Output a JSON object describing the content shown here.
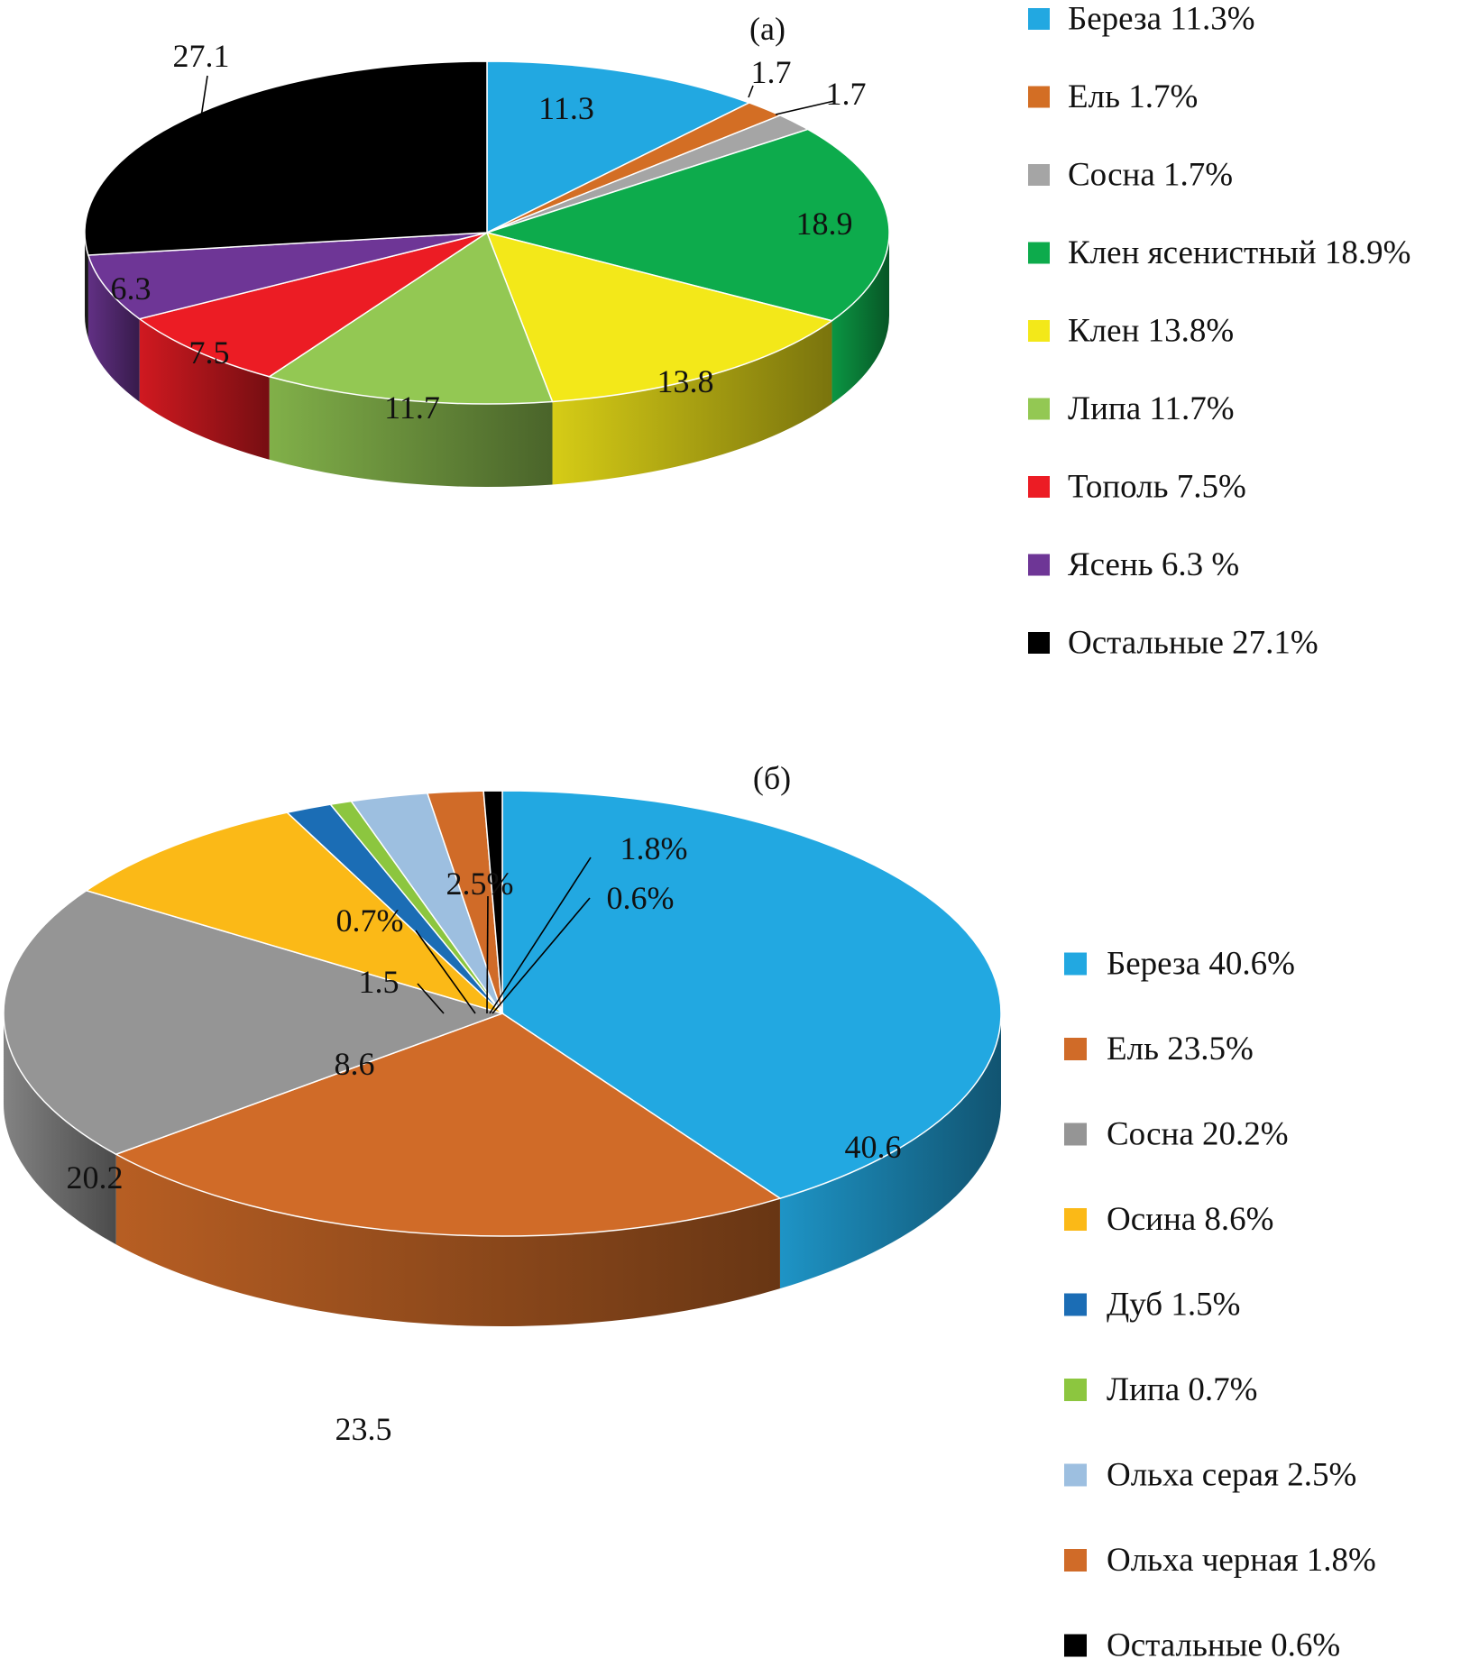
{
  "chart_data": [
    {
      "type": "pie",
      "panel_label": "(а)",
      "legend_position": "right",
      "slices": [
        {
          "name": "Береза",
          "value": 11.3,
          "label": "11.3",
          "legend": "Береза 11.3%",
          "color": "#22a8e1"
        },
        {
          "name": "Ель",
          "value": 1.7,
          "label": "1.7",
          "legend": "Ель 1.7%",
          "color": "#d36e24"
        },
        {
          "name": "Сосна",
          "value": 1.7,
          "label": "1.7",
          "legend": "Сосна 1.7%",
          "color": "#a5a5a5"
        },
        {
          "name": "Клен ясенистный",
          "value": 18.9,
          "label": "18.9",
          "legend": "Клен ясенистный 18.9%",
          "color": "#0dab4c"
        },
        {
          "name": "Клен",
          "value": 13.8,
          "label": "13.8",
          "legend": "Клен 13.8%",
          "color": "#f3e819"
        },
        {
          "name": "Липа",
          "value": 11.7,
          "label": "11.7",
          "legend": "Липа 11.7%",
          "color": "#93c853"
        },
        {
          "name": "Тополь",
          "value": 7.5,
          "label": "7.5",
          "legend": "Тополь 7.5%",
          "color": "#ec1c24"
        },
        {
          "name": "Ясень",
          "value": 6.3,
          "label": "6.3",
          "legend": "Ясень 6.3 %",
          "color": "#6e3696"
        },
        {
          "name": "Остальные",
          "value": 27.1,
          "label": "27.1",
          "legend": "Остальные 27.1%",
          "color": "#000000"
        }
      ]
    },
    {
      "type": "pie",
      "panel_label": "(б)",
      "legend_position": "right",
      "slices": [
        {
          "name": "Береза",
          "value": 40.6,
          "label": "40.6",
          "legend": "Береза 40.6%",
          "color": "#22a8e1"
        },
        {
          "name": "Ель",
          "value": 23.5,
          "label": "23.5",
          "legend": "Ель 23.5%",
          "color": "#d06b28"
        },
        {
          "name": "Сосна",
          "value": 20.2,
          "label": "20.2",
          "legend": "Сосна 20.2%",
          "color": "#959595"
        },
        {
          "name": "Осина",
          "value": 8.6,
          "label": "8.6",
          "legend": "Осина 8.6%",
          "color": "#fbb917"
        },
        {
          "name": "Дуб",
          "value": 1.5,
          "label": "1.5",
          "legend": "Дуб 1.5%",
          "color": "#1b6db5"
        },
        {
          "name": "Липа",
          "value": 0.7,
          "label": "0.7%",
          "legend": "Липа 0.7%",
          "color": "#8cc63f"
        },
        {
          "name": "Ольха серая",
          "value": 2.5,
          "label": "2.5%",
          "legend": "Ольха серая 2.5%",
          "color": "#9dbfe0"
        },
        {
          "name": "Ольха черная",
          "value": 1.8,
          "label": "1.8%",
          "legend": "Ольха черная 1.8%",
          "color": "#d06b28"
        },
        {
          "name": "Остальные",
          "value": 0.6,
          "label": "0.6%",
          "legend": "Остальные 0.6%",
          "color": "#000000"
        }
      ]
    }
  ]
}
